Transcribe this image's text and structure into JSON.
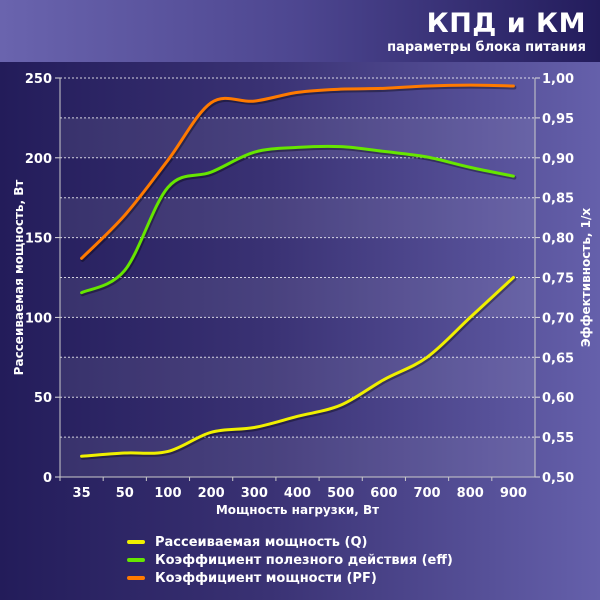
{
  "header": {
    "title": "КПД и КМ",
    "subtitle": "параметры блока питания"
  },
  "chart_data": {
    "type": "line",
    "title": "КПД и КМ",
    "subtitle": "параметры блока питания",
    "xlabel": "Мощность нагрузки, Вт",
    "ylabel": "Рассеиваемая мощность, Вт",
    "y2label": "Эффективность, 1/x",
    "categories": [
      "35",
      "50",
      "100",
      "200",
      "300",
      "400",
      "500",
      "600",
      "700",
      "800",
      "900"
    ],
    "ylim": [
      0,
      250
    ],
    "y2lim": [
      0.5,
      1.0
    ],
    "yticks": [
      "0",
      "50",
      "100",
      "150",
      "200",
      "250"
    ],
    "y2ticks": [
      "0,50",
      "0,55",
      "0,60",
      "0,65",
      "0,70",
      "0,75",
      "0,80",
      "0,85",
      "0,90",
      "0,95",
      "1,00"
    ],
    "grid": true,
    "legend_position": "bottom",
    "series": [
      {
        "name": "Рассеиваемая мощность (Q)",
        "axis": "left",
        "color": "#f0f000",
        "values": [
          13,
          15,
          16,
          28,
          31,
          38,
          45,
          61,
          75,
          100,
          125
        ]
      },
      {
        "name": "Коэффициент полезного действия (eff)",
        "axis": "right",
        "color": "#66e600",
        "values": [
          0.731,
          0.759,
          0.863,
          0.882,
          0.907,
          0.913,
          0.914,
          0.908,
          0.901,
          0.888,
          0.877
        ]
      },
      {
        "name": "Коэффициент мощности (PF)",
        "axis": "right",
        "color": "#ff7a00",
        "values": [
          0.774,
          0.828,
          0.897,
          0.969,
          0.971,
          0.982,
          0.986,
          0.987,
          0.99,
          0.991,
          0.99
        ]
      }
    ]
  }
}
